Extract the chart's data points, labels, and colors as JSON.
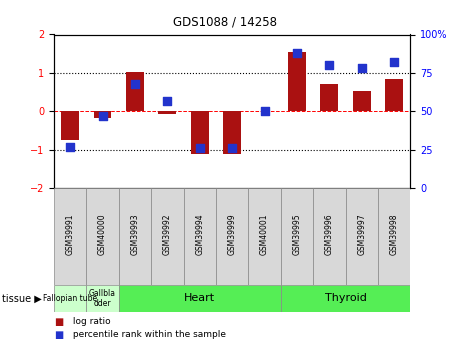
{
  "title": "GDS1088 / 14258",
  "samples": [
    "GSM39991",
    "GSM40000",
    "GSM39993",
    "GSM39992",
    "GSM39994",
    "GSM39999",
    "GSM40001",
    "GSM39995",
    "GSM39996",
    "GSM39997",
    "GSM39998"
  ],
  "log_ratio": [
    -0.75,
    -0.17,
    1.02,
    -0.08,
    -1.12,
    -1.12,
    0.0,
    1.55,
    0.72,
    0.52,
    0.83
  ],
  "percentile": [
    27,
    47,
    68,
    57,
    26,
    26,
    50,
    88,
    80,
    78,
    82
  ],
  "bar_color": "#aa1111",
  "dot_color": "#2233cc",
  "ylim_left": [
    -2,
    2
  ],
  "ylim_right": [
    0,
    100
  ],
  "yticks_left": [
    -2,
    -1,
    0,
    1,
    2
  ],
  "yticks_right": [
    0,
    25,
    50,
    75,
    100
  ],
  "ytick_labels_right": [
    "0",
    "25",
    "50",
    "75",
    "100%"
  ],
  "bar_width": 0.55,
  "dot_size": 28,
  "bg_color": "#ffffff",
  "tissue_rows": [
    {
      "label": "Fallopian tube",
      "start": 0,
      "end": 1,
      "color": "#ccffcc",
      "fontsize": 5.5
    },
    {
      "label": "Gallbla\ndder",
      "start": 1,
      "end": 2,
      "color": "#ccffcc",
      "fontsize": 5.5
    },
    {
      "label": "Heart",
      "start": 2,
      "end": 7,
      "color": "#55ee55",
      "fontsize": 8
    },
    {
      "label": "Thyroid",
      "start": 7,
      "end": 11,
      "color": "#55ee55",
      "fontsize": 8
    }
  ],
  "legend_items": [
    {
      "color": "#aa1111",
      "label": " log ratio"
    },
    {
      "color": "#2233cc",
      "label": " percentile rank within the sample"
    }
  ]
}
